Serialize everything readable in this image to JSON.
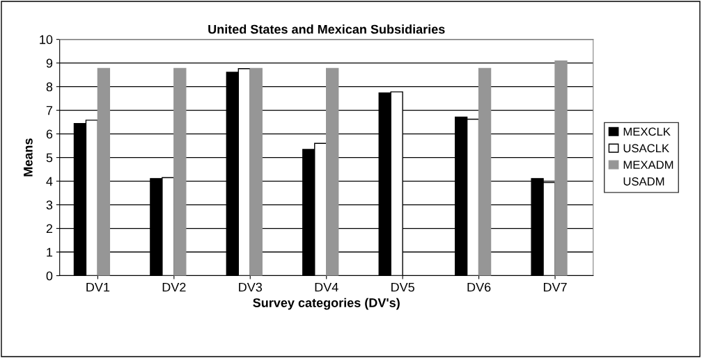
{
  "chart_data": {
    "type": "bar",
    "title": "United States and Mexican Subsidiaries",
    "xlabel": "Survey categories (DV's)",
    "ylabel": "Means",
    "categories": [
      "DV1",
      "DV2",
      "DV3",
      "DV4",
      "DV5",
      "DV6",
      "DV7"
    ],
    "series": [
      {
        "name": "MEXCLK",
        "color": "#000000",
        "values": [
          6.44,
          4.11,
          8.61,
          5.34,
          7.73,
          6.71,
          4.11
        ]
      },
      {
        "name": "USACLK",
        "color": "#ffffff",
        "values": [
          6.58,
          4.15,
          8.76,
          5.6,
          7.78,
          6.62,
          3.94
        ]
      },
      {
        "name": "MEXADM",
        "color": "#969696",
        "values": [
          8.77,
          8.77,
          8.77,
          8.77,
          null,
          8.77,
          9.09
        ]
      },
      {
        "name": "USADM",
        "values": [
          null,
          null,
          null,
          null,
          null,
          null,
          null
        ]
      }
    ],
    "ylim": [
      0,
      10
    ],
    "yticks": [
      0,
      1,
      2,
      3,
      4,
      5,
      6,
      7,
      8,
      9,
      10
    ],
    "grid": "y",
    "legend": "right"
  }
}
